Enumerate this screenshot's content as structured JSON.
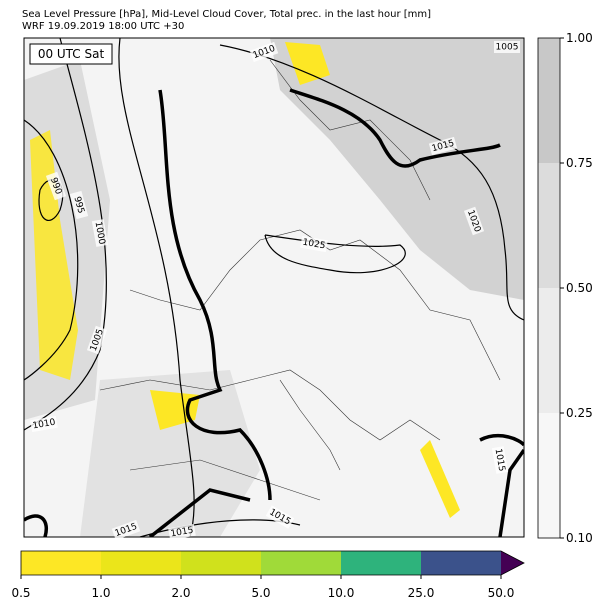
{
  "header": {
    "title": "Sea Level Pressure [hPa], Mid-Level Cloud Cover, Total prec. in the last hour [mm]",
    "subtitle": "WRF 19.09.2019 18:00 UTC +30"
  },
  "map": {
    "time_label": "00 UTC Sat",
    "contour_labels": [
      "1010",
      "1005",
      "990",
      "995",
      "1000",
      "1005",
      "1010",
      "1015",
      "1020",
      "1025",
      "1015",
      "1015",
      "1015",
      "1015"
    ]
  },
  "cloud_colorbar": {
    "ticks": [
      "1.00",
      "0.75",
      "0.50",
      "0.25",
      "0.10"
    ]
  },
  "precip_colorbar": {
    "ticks": [
      "0.5",
      "1.0",
      "2.0",
      "5.0",
      "10.0",
      "25.0",
      "50.0"
    ]
  }
}
